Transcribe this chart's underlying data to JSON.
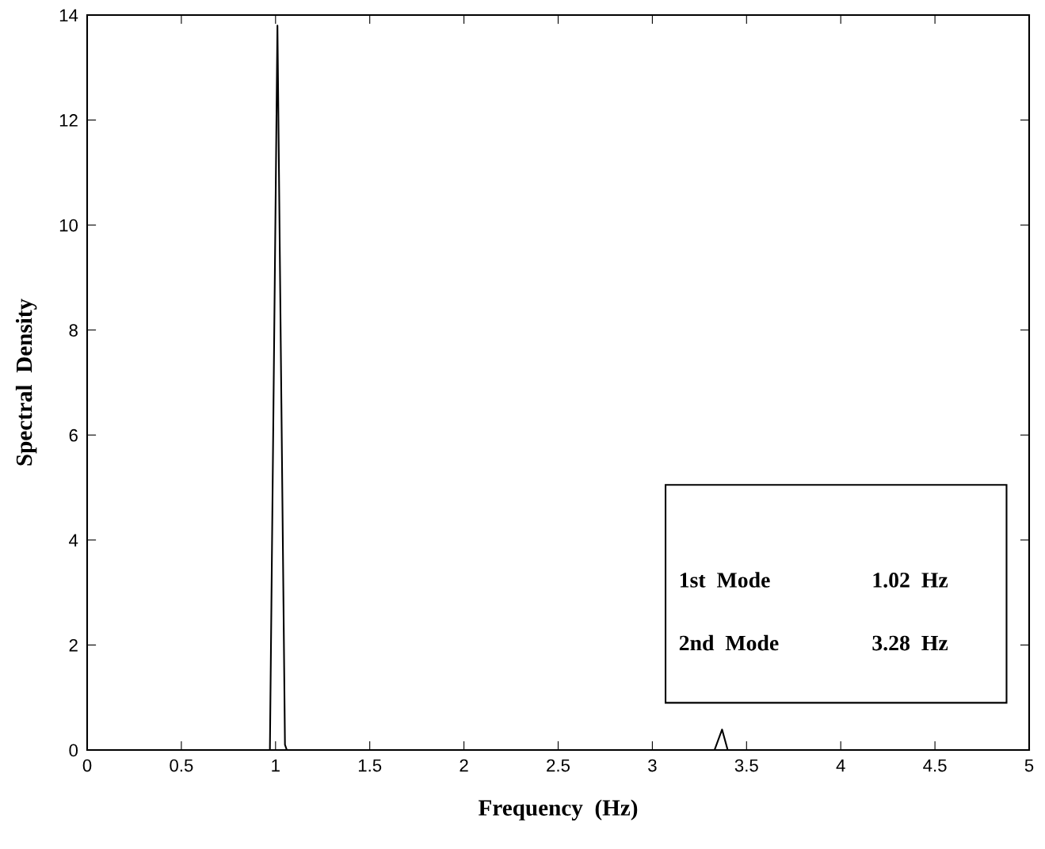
{
  "chart_data": {
    "type": "line",
    "xlabel": "Frequency  (Hz)",
    "ylabel": "Spectral  Density",
    "x": [
      0,
      0.97,
      1.01,
      1.05,
      1.06,
      3.33,
      3.37,
      3.4,
      5
    ],
    "series": [
      {
        "color": "#000000",
        "values": [
          0,
          0,
          13.8,
          0.1,
          0,
          0,
          0.39,
          0,
          0
        ]
      }
    ],
    "xlim": [
      0,
      5
    ],
    "xticks": [
      0,
      0.5,
      1,
      1.5,
      2,
      2.5,
      3,
      3.5,
      4,
      4.5,
      5
    ],
    "ylim": [
      0,
      14
    ],
    "yticks": [
      0,
      2,
      4,
      6,
      8,
      10,
      12,
      14
    ],
    "grid": false,
    "legend": false,
    "annotations": [
      "1st  Mode",
      "1.02  Hz",
      "2nd  Mode",
      "3.28  Hz"
    ]
  }
}
